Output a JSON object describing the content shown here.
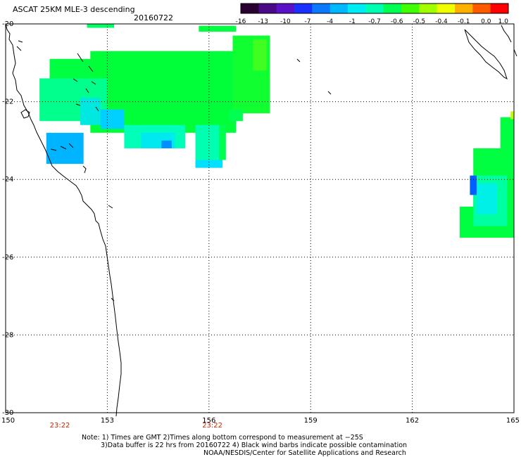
{
  "title": {
    "product": "ASCAT 25KM MLE-3 descending",
    "date": "20160722"
  },
  "colorbar": {
    "colors": [
      "#2a0030",
      "#4a0a88",
      "#5a12c8",
      "#1a30ff",
      "#0a78ff",
      "#00b8ff",
      "#00ecf4",
      "#00ffb0",
      "#00ff50",
      "#40ff00",
      "#a0ff00",
      "#f0ff00",
      "#ffb000",
      "#ff5a00",
      "#ff0000"
    ],
    "tick_labels": [
      "-16",
      "-13",
      "-10",
      "-7",
      "-4",
      "-1",
      "-0.7",
      "-0.6",
      "-0.5",
      "-0.4",
      "-0.1",
      "0.0",
      "1.0"
    ]
  },
  "map": {
    "lon_range": [
      150,
      165
    ],
    "lat_range": [
      -30,
      -20
    ],
    "lon_ticks": [
      "150",
      "153",
      "156",
      "159",
      "162",
      "165"
    ],
    "lat_ticks": [
      "-20",
      "-22",
      "-24",
      "-26",
      "-28",
      "-30"
    ],
    "time_labels": [
      {
        "lon": 151.6,
        "text": "23:22"
      },
      {
        "lon": 156.1,
        "text": "23:22"
      }
    ],
    "swaths": [
      {
        "lon0": 151.3,
        "lat0": -20.9,
        "lon1": 152.7,
        "lat1": -21.6,
        "color": "#00ff40"
      },
      {
        "lon0": 152.5,
        "lat0": -20.7,
        "lon1": 156.8,
        "lat1": -22.8,
        "color": "#00ff38"
      },
      {
        "lon0": 156.7,
        "lat0": -20.3,
        "lon1": 157.8,
        "lat1": -22.3,
        "color": "#10ff30"
      },
      {
        "lon0": 157.3,
        "lat0": -20.4,
        "lon1": 157.7,
        "lat1": -21.2,
        "color": "#40ff20"
      },
      {
        "lon0": 151.0,
        "lat0": -21.4,
        "lon1": 153.0,
        "lat1": -22.5,
        "color": "#00ff8c"
      },
      {
        "lon0": 152.2,
        "lat0": -21.9,
        "lon1": 152.8,
        "lat1": -22.6,
        "color": "#00e8e0"
      },
      {
        "lon0": 152.8,
        "lat0": -22.2,
        "lon1": 153.5,
        "lat1": -22.7,
        "color": "#00d0ff"
      },
      {
        "lon0": 153.5,
        "lat0": -22.6,
        "lon1": 155.3,
        "lat1": -23.2,
        "color": "#00ffb8"
      },
      {
        "lon0": 154.0,
        "lat0": -22.8,
        "lon1": 155.0,
        "lat1": -23.2,
        "color": "#00e8f0"
      },
      {
        "lon0": 154.6,
        "lat0": -23.0,
        "lon1": 154.9,
        "lat1": -23.2,
        "color": "#0090ff"
      },
      {
        "lon0": 155.6,
        "lat0": -22.6,
        "lon1": 156.4,
        "lat1": -23.7,
        "color": "#00ffb0"
      },
      {
        "lon0": 155.6,
        "lat0": -23.5,
        "lon1": 156.4,
        "lat1": -23.7,
        "color": "#00e0ff"
      },
      {
        "lon0": 156.3,
        "lat0": -22.6,
        "lon1": 156.5,
        "lat1": -23.5,
        "color": "#00ff50"
      },
      {
        "lon0": 156.6,
        "lat0": -22.2,
        "lon1": 157.0,
        "lat1": -22.5,
        "color": "#00ff50"
      },
      {
        "lon0": 152.4,
        "lat0": -20.0,
        "lon1": 153.2,
        "lat1": -20.1,
        "color": "#00ff60"
      },
      {
        "lon0": 155.7,
        "lat0": -20.05,
        "lon1": 156.8,
        "lat1": -20.2,
        "color": "#00ff40"
      },
      {
        "lon0": 151.2,
        "lat0": -22.8,
        "lon1": 152.3,
        "lat1": -23.6,
        "color": "#00b4ff"
      },
      {
        "lon0": 163.4,
        "lat0": -24.7,
        "lon1": 165.0,
        "lat1": -25.5,
        "color": "#00ff40"
      },
      {
        "lon0": 163.8,
        "lat0": -23.2,
        "lon1": 165.0,
        "lat1": -24.8,
        "color": "#00ff40"
      },
      {
        "lon0": 164.6,
        "lat0": -22.4,
        "lon1": 165.0,
        "lat1": -23.3,
        "color": "#00ff40"
      },
      {
        "lon0": 164.9,
        "lat0": -22.25,
        "lon1": 165.0,
        "lat1": -22.45,
        "color": "#c0ff00"
      },
      {
        "lon0": 163.8,
        "lat0": -23.9,
        "lon1": 164.8,
        "lat1": -25.2,
        "color": "#00ffa0"
      },
      {
        "lon0": 163.9,
        "lat0": -24.1,
        "lon1": 164.5,
        "lat1": -24.9,
        "color": "#00f0e8"
      },
      {
        "lon0": 163.7,
        "lat0": -23.9,
        "lon1": 163.9,
        "lat1": -24.4,
        "color": "#0060ff"
      }
    ]
  },
  "footnote": {
    "line1": "Note: 1) Times are GMT 2)Times along bottom correspond to measurement at −25S",
    "line2": "3)Data buffer is 22 hrs from 20160722 4) Black wind barbs indicate possible contamination",
    "line3": "NOAA/NESDIS/Center for Satellite Applications and Research"
  }
}
